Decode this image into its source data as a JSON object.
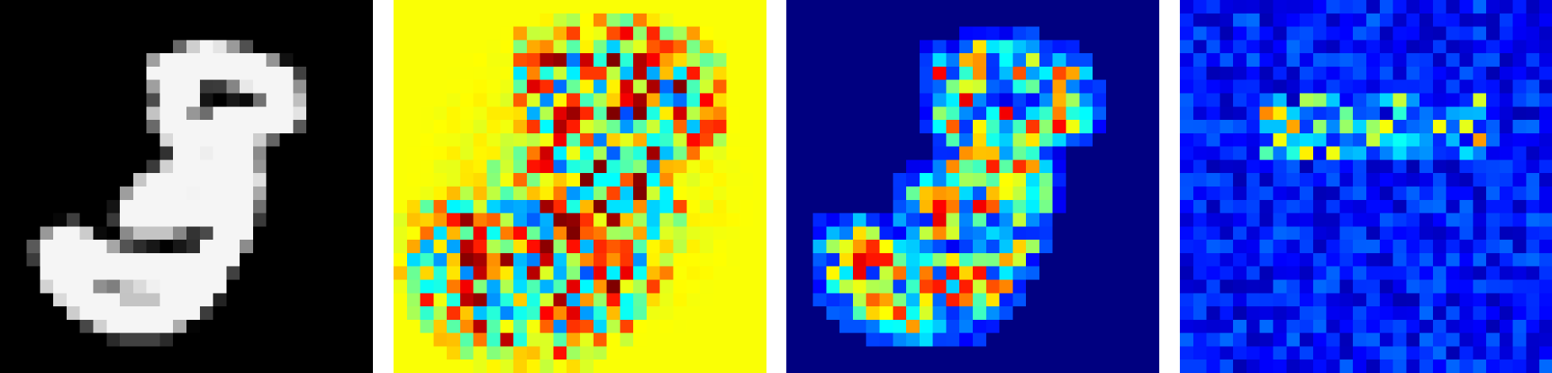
{
  "grid_size": 28,
  "panels": [
    {
      "name": "input-digit-image",
      "colormap": "gray",
      "background": "#000000"
    },
    {
      "name": "signed-attribution-map",
      "colormap": "jet",
      "background": "#a6ff5a"
    },
    {
      "name": "positive-attribution-map",
      "colormap": "jet",
      "background": "#00008b"
    },
    {
      "name": "noisy-attribution-map",
      "colormap": "jet",
      "background": "#00008b"
    }
  ]
}
